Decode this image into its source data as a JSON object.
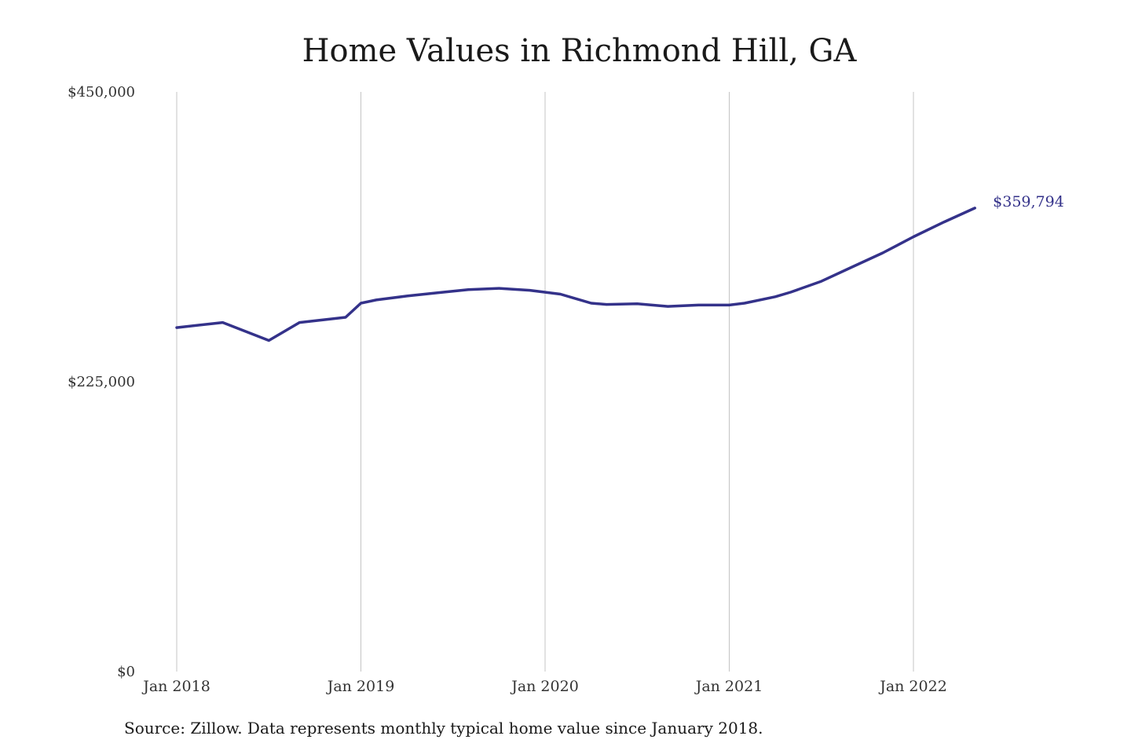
{
  "chart_data": {
    "type": "line",
    "title": "Home Values in Richmond Hill, GA",
    "xlabel": "",
    "ylabel": "",
    "x_ticks": [
      "Jan 2018",
      "Jan 2019",
      "Jan 2020",
      "Jan 2021",
      "Jan 2022"
    ],
    "y_ticks": [
      "$0",
      "$225,000",
      "$450,000"
    ],
    "ylim": [
      0,
      450000
    ],
    "grid": "vertical",
    "line_color": "#34328a",
    "series": [
      {
        "x": [
          "2018-01",
          "2018-04",
          "2018-07",
          "2018-09",
          "2018-12",
          "2019-01",
          "2019-02",
          "2019-04",
          "2019-06",
          "2019-08",
          "2019-10",
          "2019-12",
          "2020-02",
          "2020-04",
          "2020-05",
          "2020-07",
          "2020-09",
          "2020-11",
          "2021-01",
          "2021-02",
          "2021-04",
          "2021-05",
          "2021-07",
          "2021-09",
          "2021-11",
          "2022-01",
          "2022-03",
          "2022-05"
        ],
        "values": [
          267000,
          271000,
          257000,
          271000,
          275000,
          286000,
          288500,
          291500,
          294000,
          296500,
          297500,
          296000,
          293000,
          286000,
          285000,
          285500,
          283500,
          284500,
          284500,
          286000,
          291000,
          294500,
          303000,
          314000,
          325000,
          337500,
          349000,
          359794
        ]
      }
    ],
    "end_label": "$359,794",
    "source_note": "Source: Zillow. Data represents monthly typical home value since January 2018."
  }
}
